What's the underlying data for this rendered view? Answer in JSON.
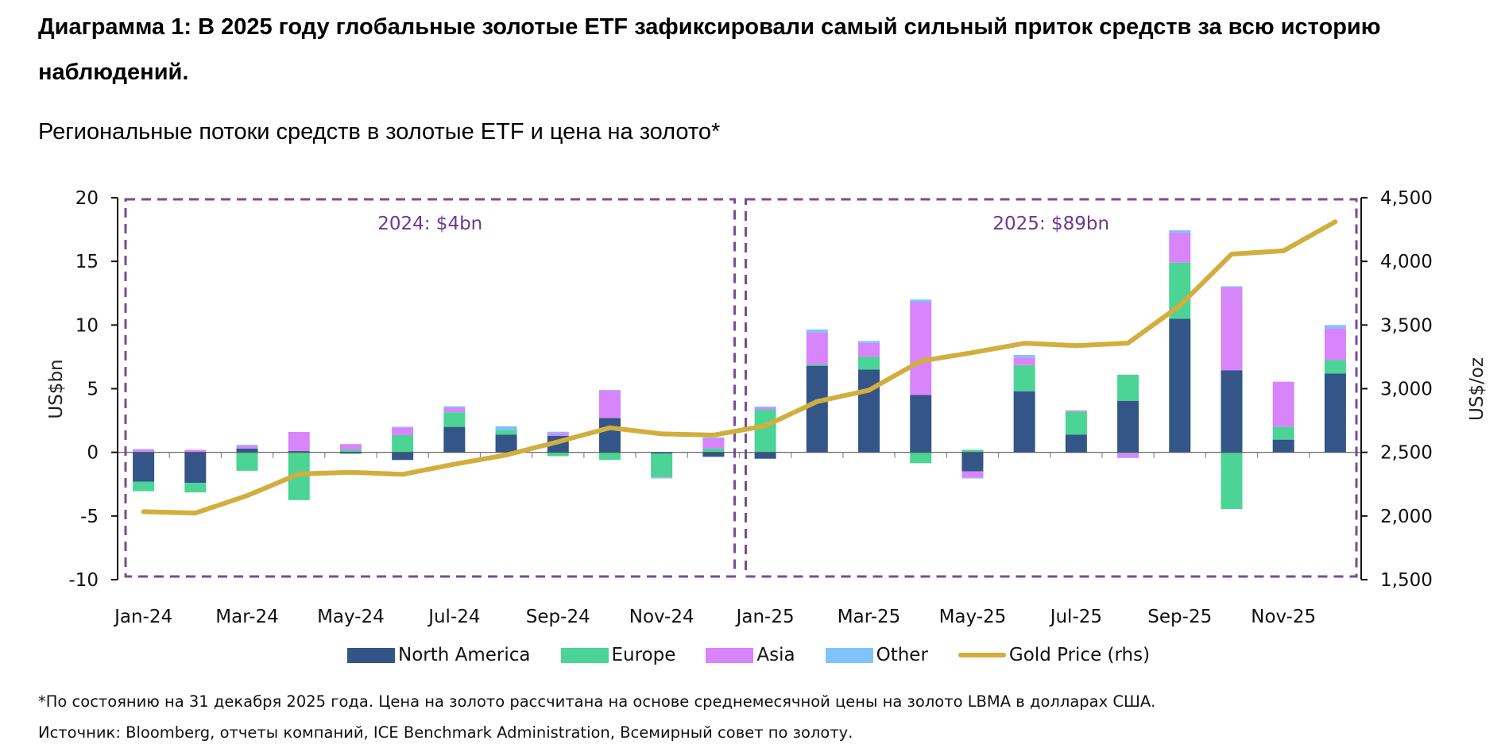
{
  "title": "Диаграмма 1: В 2025 году глобальные золотые ETF зафиксировали самый сильный приток средств за всю историю наблюдений.",
  "subtitle": "Региональные потоки средств в золотые ETF и цена на золото*",
  "footnotes": {
    "note": "*По состоянию на 31 декабря 2025 года. Цена на золото рассчитана на основе среднемесячной цены на золото LBMA в долларах США.",
    "source": "Источник: Bloomberg, отчеты компаний, ICE Benchmark Administration, Всемирный совет по золоту."
  },
  "colors": {
    "north_america": "#335587",
    "europe": "#4bd495",
    "asia": "#d884fb",
    "other": "#80c3fc",
    "gold": "#d2ae3e",
    "annotation": "#7a4b9b"
  },
  "chart_data": {
    "type": "bar",
    "stacked": true,
    "title": "Региональные потоки средств в золотые ETF и цена на золото*",
    "xlabel": "",
    "ylabel": "US$bn",
    "ylabel_right": "US$/oz",
    "ylim": [
      -10,
      20
    ],
    "ylim_right": [
      1500,
      4500
    ],
    "yticks": [
      "20",
      "15",
      "10",
      "5",
      "0",
      "-5",
      "-10"
    ],
    "yticks_values": [
      20,
      15,
      10,
      5,
      0,
      -5,
      -10
    ],
    "yticks_right": [
      "4,500",
      "4,000",
      "3,500",
      "3,000",
      "2,500",
      "2,000",
      "1,500"
    ],
    "yticks_right_values": [
      4500,
      4000,
      3500,
      3000,
      2500,
      2000,
      1500
    ],
    "categories": [
      "Jan-24",
      "Feb-24",
      "Mar-24",
      "Apr-24",
      "May-24",
      "Jun-24",
      "Jul-24",
      "Aug-24",
      "Sep-24",
      "Oct-24",
      "Nov-24",
      "Dec-24",
      "Jan-25",
      "Feb-25",
      "Mar-25",
      "Apr-25",
      "May-25",
      "Jun-25",
      "Jul-25",
      "Aug-25",
      "Sep-25",
      "Oct-25",
      "Nov-25",
      "Dec-25"
    ],
    "xtick_labels": [
      "Jan-24",
      "Mar-24",
      "May-24",
      "Jul-24",
      "Sep-24",
      "Nov-24",
      "Jan-25",
      "Mar-25",
      "May-25",
      "Jul-25",
      "Sep-25",
      "Nov-25"
    ],
    "series": [
      {
        "name": "North America",
        "key": "north_america",
        "values": [
          -2.3,
          -2.4,
          0.3,
          0.1,
          -0.1,
          -0.6,
          2.0,
          1.4,
          1.3,
          2.7,
          -0.1,
          -0.35,
          -0.5,
          6.8,
          6.5,
          4.5,
          -1.5,
          4.8,
          1.4,
          4.05,
          10.5,
          6.45,
          1.0,
          6.2
        ]
      },
      {
        "name": "Europe",
        "key": "europe",
        "values": [
          -0.75,
          -0.75,
          -1.45,
          -3.75,
          0.2,
          1.35,
          1.15,
          0.35,
          -0.3,
          -0.6,
          -1.85,
          0.3,
          3.35,
          0.1,
          1.0,
          -0.85,
          0.2,
          2.05,
          1.8,
          2.05,
          4.4,
          -4.45,
          1.0,
          1.05
        ]
      },
      {
        "name": "Asia",
        "key": "asia",
        "values": [
          0.2,
          0.2,
          0.2,
          1.5,
          0.45,
          0.6,
          0.35,
          0.0,
          0.2,
          2.15,
          -0.05,
          0.8,
          0.15,
          2.5,
          1.1,
          7.3,
          -0.5,
          0.6,
          0.1,
          -0.4,
          2.35,
          6.5,
          3.55,
          2.5
        ]
      },
      {
        "name": "Other",
        "key": "other",
        "values": [
          0.06,
          0.0,
          0.1,
          0.0,
          0.0,
          0.06,
          0.12,
          0.3,
          0.12,
          0.06,
          -0.05,
          0.08,
          0.1,
          0.25,
          0.15,
          0.2,
          -0.05,
          0.2,
          -0.05,
          -0.05,
          0.2,
          0.1,
          0.0,
          0.25
        ]
      },
      {
        "name": "Gold Price (rhs)",
        "key": "gold",
        "type": "line",
        "axis": "right",
        "values": [
          2034,
          2023,
          2160,
          2330,
          2344,
          2327,
          2407,
          2479,
          2583,
          2693,
          2645,
          2636,
          2708,
          2899,
          2988,
          3217,
          3283,
          3357,
          3338,
          3358,
          3653,
          4057,
          4083,
          4311
        ]
      }
    ],
    "annotations": [
      {
        "text": "2024: $4bn",
        "range": [
          "Jan-24",
          "Dec-24"
        ],
        "style": "dashed-box"
      },
      {
        "text": "2025: $89bn",
        "range": [
          "Jan-25",
          "Dec-25"
        ],
        "style": "dashed-box"
      }
    ],
    "legend": {
      "position": "bottom",
      "entries": [
        "North America",
        "Europe",
        "Asia",
        "Other",
        "Gold Price (rhs)"
      ]
    },
    "grid": false
  }
}
